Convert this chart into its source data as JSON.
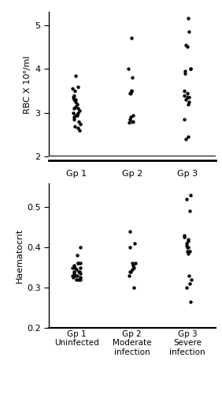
{
  "rbc_gp1": [
    3.85,
    3.6,
    3.55,
    3.5,
    3.4,
    3.35,
    3.3,
    3.3,
    3.25,
    3.2,
    3.15,
    3.1,
    3.1,
    3.05,
    3.0,
    3.0,
    2.95,
    2.95,
    2.9,
    2.85,
    2.8,
    2.75,
    2.7,
    2.65,
    2.6
  ],
  "rbc_gp2": [
    4.7,
    4.0,
    3.8,
    3.5,
    3.5,
    3.45,
    3.45,
    2.95,
    2.9,
    2.85,
    2.8,
    2.8,
    2.78
  ],
  "rbc_gp3": [
    5.15,
    4.85,
    4.55,
    4.5,
    4.0,
    4.0,
    3.95,
    3.9,
    3.5,
    3.45,
    3.4,
    3.35,
    3.35,
    3.3,
    3.25,
    3.2,
    2.85,
    2.45,
    2.4
  ],
  "hct_gp1": [
    0.4,
    0.38,
    0.36,
    0.36,
    0.36,
    0.355,
    0.35,
    0.35,
    0.35,
    0.345,
    0.34,
    0.34,
    0.34,
    0.335,
    0.335,
    0.33,
    0.33,
    0.33,
    0.325,
    0.325,
    0.32,
    0.32,
    0.32
  ],
  "hct_gp2": [
    0.44,
    0.41,
    0.4,
    0.36,
    0.36,
    0.355,
    0.35,
    0.345,
    0.34,
    0.34,
    0.33,
    0.3
  ],
  "hct_gp3": [
    0.53,
    0.52,
    0.49,
    0.43,
    0.425,
    0.42,
    0.415,
    0.41,
    0.405,
    0.4,
    0.4,
    0.39,
    0.39,
    0.385,
    0.33,
    0.32,
    0.31,
    0.3,
    0.265
  ],
  "rbc_ylim": [
    2.0,
    5.3
  ],
  "rbc_yticks": [
    2.0,
    3.0,
    4.0,
    5.0
  ],
  "hct_ylim": [
    0.2,
    0.56
  ],
  "hct_yticks": [
    0.2,
    0.3,
    0.4,
    0.5
  ],
  "group_positions": [
    1,
    2,
    3
  ],
  "group_labels_top": [
    "Gp 1",
    "Gp 2",
    "Gp 3"
  ],
  "group_labels_bottom": [
    "Gp 1\nUninfected",
    "Gp 2\nModerate\ninfection",
    "Gp 3\nSevere\ninfection"
  ],
  "rbc_ylabel": "RBC X 10⁶/ml",
  "hct_ylabel": "Haematocrit",
  "dot_color": "#000000",
  "dot_size": 10,
  "jitter_amount": 0.07,
  "bg_color": "#ffffff"
}
